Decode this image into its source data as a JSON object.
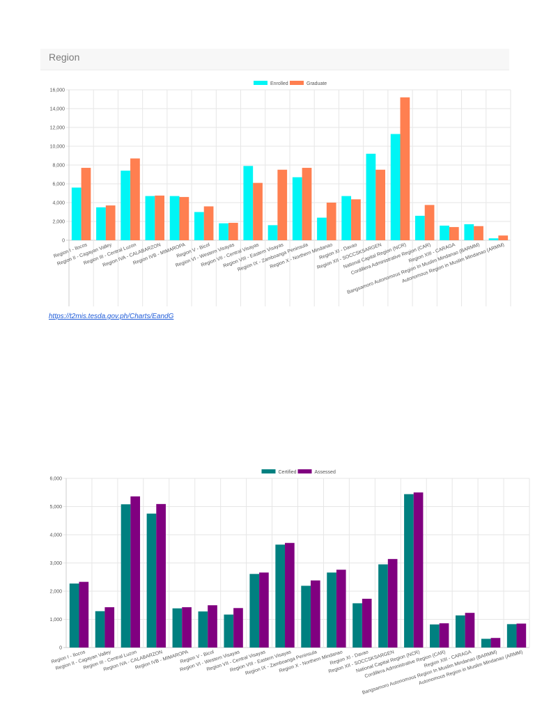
{
  "panel": {
    "title": "Region"
  },
  "source_link": {
    "text": "https://t2mis.tesda.gov.ph/Charts/EandG"
  },
  "chart_data": [
    {
      "type": "bar",
      "categories": [
        "Region I - Ilocos",
        "Region II - Cagayan Valley",
        "Region III - Central Luzon",
        "Region IVA - CALABARZON",
        "Region IVB - MIMAROPA",
        "Region V - Bicol",
        "Region VI - Western Visayas",
        "Region VII - Central Visayas",
        "Region VIII - Eastern Visayas",
        "Region IX - Zamboanga Peninsula",
        "Region X - Northern Mindanao",
        "Region XI - Davao",
        "Region XII - SOCCSKSARGEN",
        "National Capital Region (NCR)",
        "Cordillera Administrative Region (CAR)",
        "Region XIII - CARAGA",
        "Bangsamoro Autonomous Region In Muslim Mindanao (BARMM)",
        "Autonomous Region in Muslim Mindanao (ARMM)"
      ],
      "series": [
        {
          "name": "Enrolled",
          "color": "#00f5f5",
          "values": [
            5600,
            3500,
            7400,
            4700,
            4700,
            3000,
            1800,
            7900,
            1600,
            6700,
            2400,
            4700,
            9200,
            11300,
            2600,
            1550,
            1700,
            200
          ]
        },
        {
          "name": "Graduate",
          "color": "#ff7f50",
          "values": [
            7700,
            3700,
            8700,
            4750,
            4600,
            3600,
            1850,
            6100,
            7500,
            7700,
            4000,
            4350,
            7500,
            15200,
            3750,
            1400,
            1500,
            500
          ]
        }
      ],
      "ylim": [
        0,
        16000
      ],
      "yticks": [
        "0",
        "2,000",
        "4,000",
        "6,000",
        "8,000",
        "10,000",
        "12,000",
        "14,000",
        "16,000"
      ],
      "grid": true,
      "legend": "top"
    },
    {
      "type": "bar",
      "categories": [
        "Region I - Ilocos",
        "Region II - Cagayan Valley",
        "Region III - Central Luzon",
        "Region IVA - CALABARZON",
        "Region IVB - MIMAROPA",
        "Region V - Bicol",
        "Region VI - Western Visayas",
        "Region VII - Central Visayas",
        "Region VIII - Eastern Visayas",
        "Region IX - Zamboanga Peninsula",
        "Region X - Northern Mindanao",
        "Region XI - Davao",
        "Region XII - SOCCSKSARGEN",
        "National Capital Region (NCR)",
        "Cordillera Administrative Region (CAR)",
        "Region XIII - CARAGA",
        "Bangsamoro Autonomous Region In Muslim Mindanao (BARMM)",
        "Autonomous Region in Muslim Mindanao (ARMM)"
      ],
      "series": [
        {
          "name": "Certified",
          "color": "#008080",
          "values": [
            2270,
            1290,
            5080,
            4750,
            1390,
            1280,
            1170,
            2610,
            3650,
            2190,
            2660,
            1570,
            2950,
            5440,
            820,
            1140,
            310,
            830
          ]
        },
        {
          "name": "Assessed",
          "color": "#800080",
          "values": [
            2330,
            1430,
            5360,
            5090,
            1430,
            1500,
            1400,
            2660,
            3710,
            2380,
            2760,
            1730,
            3140,
            5500,
            860,
            1230,
            340,
            850
          ]
        }
      ],
      "ylim": [
        0,
        6000
      ],
      "yticks": [
        "0",
        "1,000",
        "2,000",
        "3,000",
        "4,000",
        "5,000",
        "6,000"
      ],
      "grid": true,
      "legend": "top"
    }
  ]
}
